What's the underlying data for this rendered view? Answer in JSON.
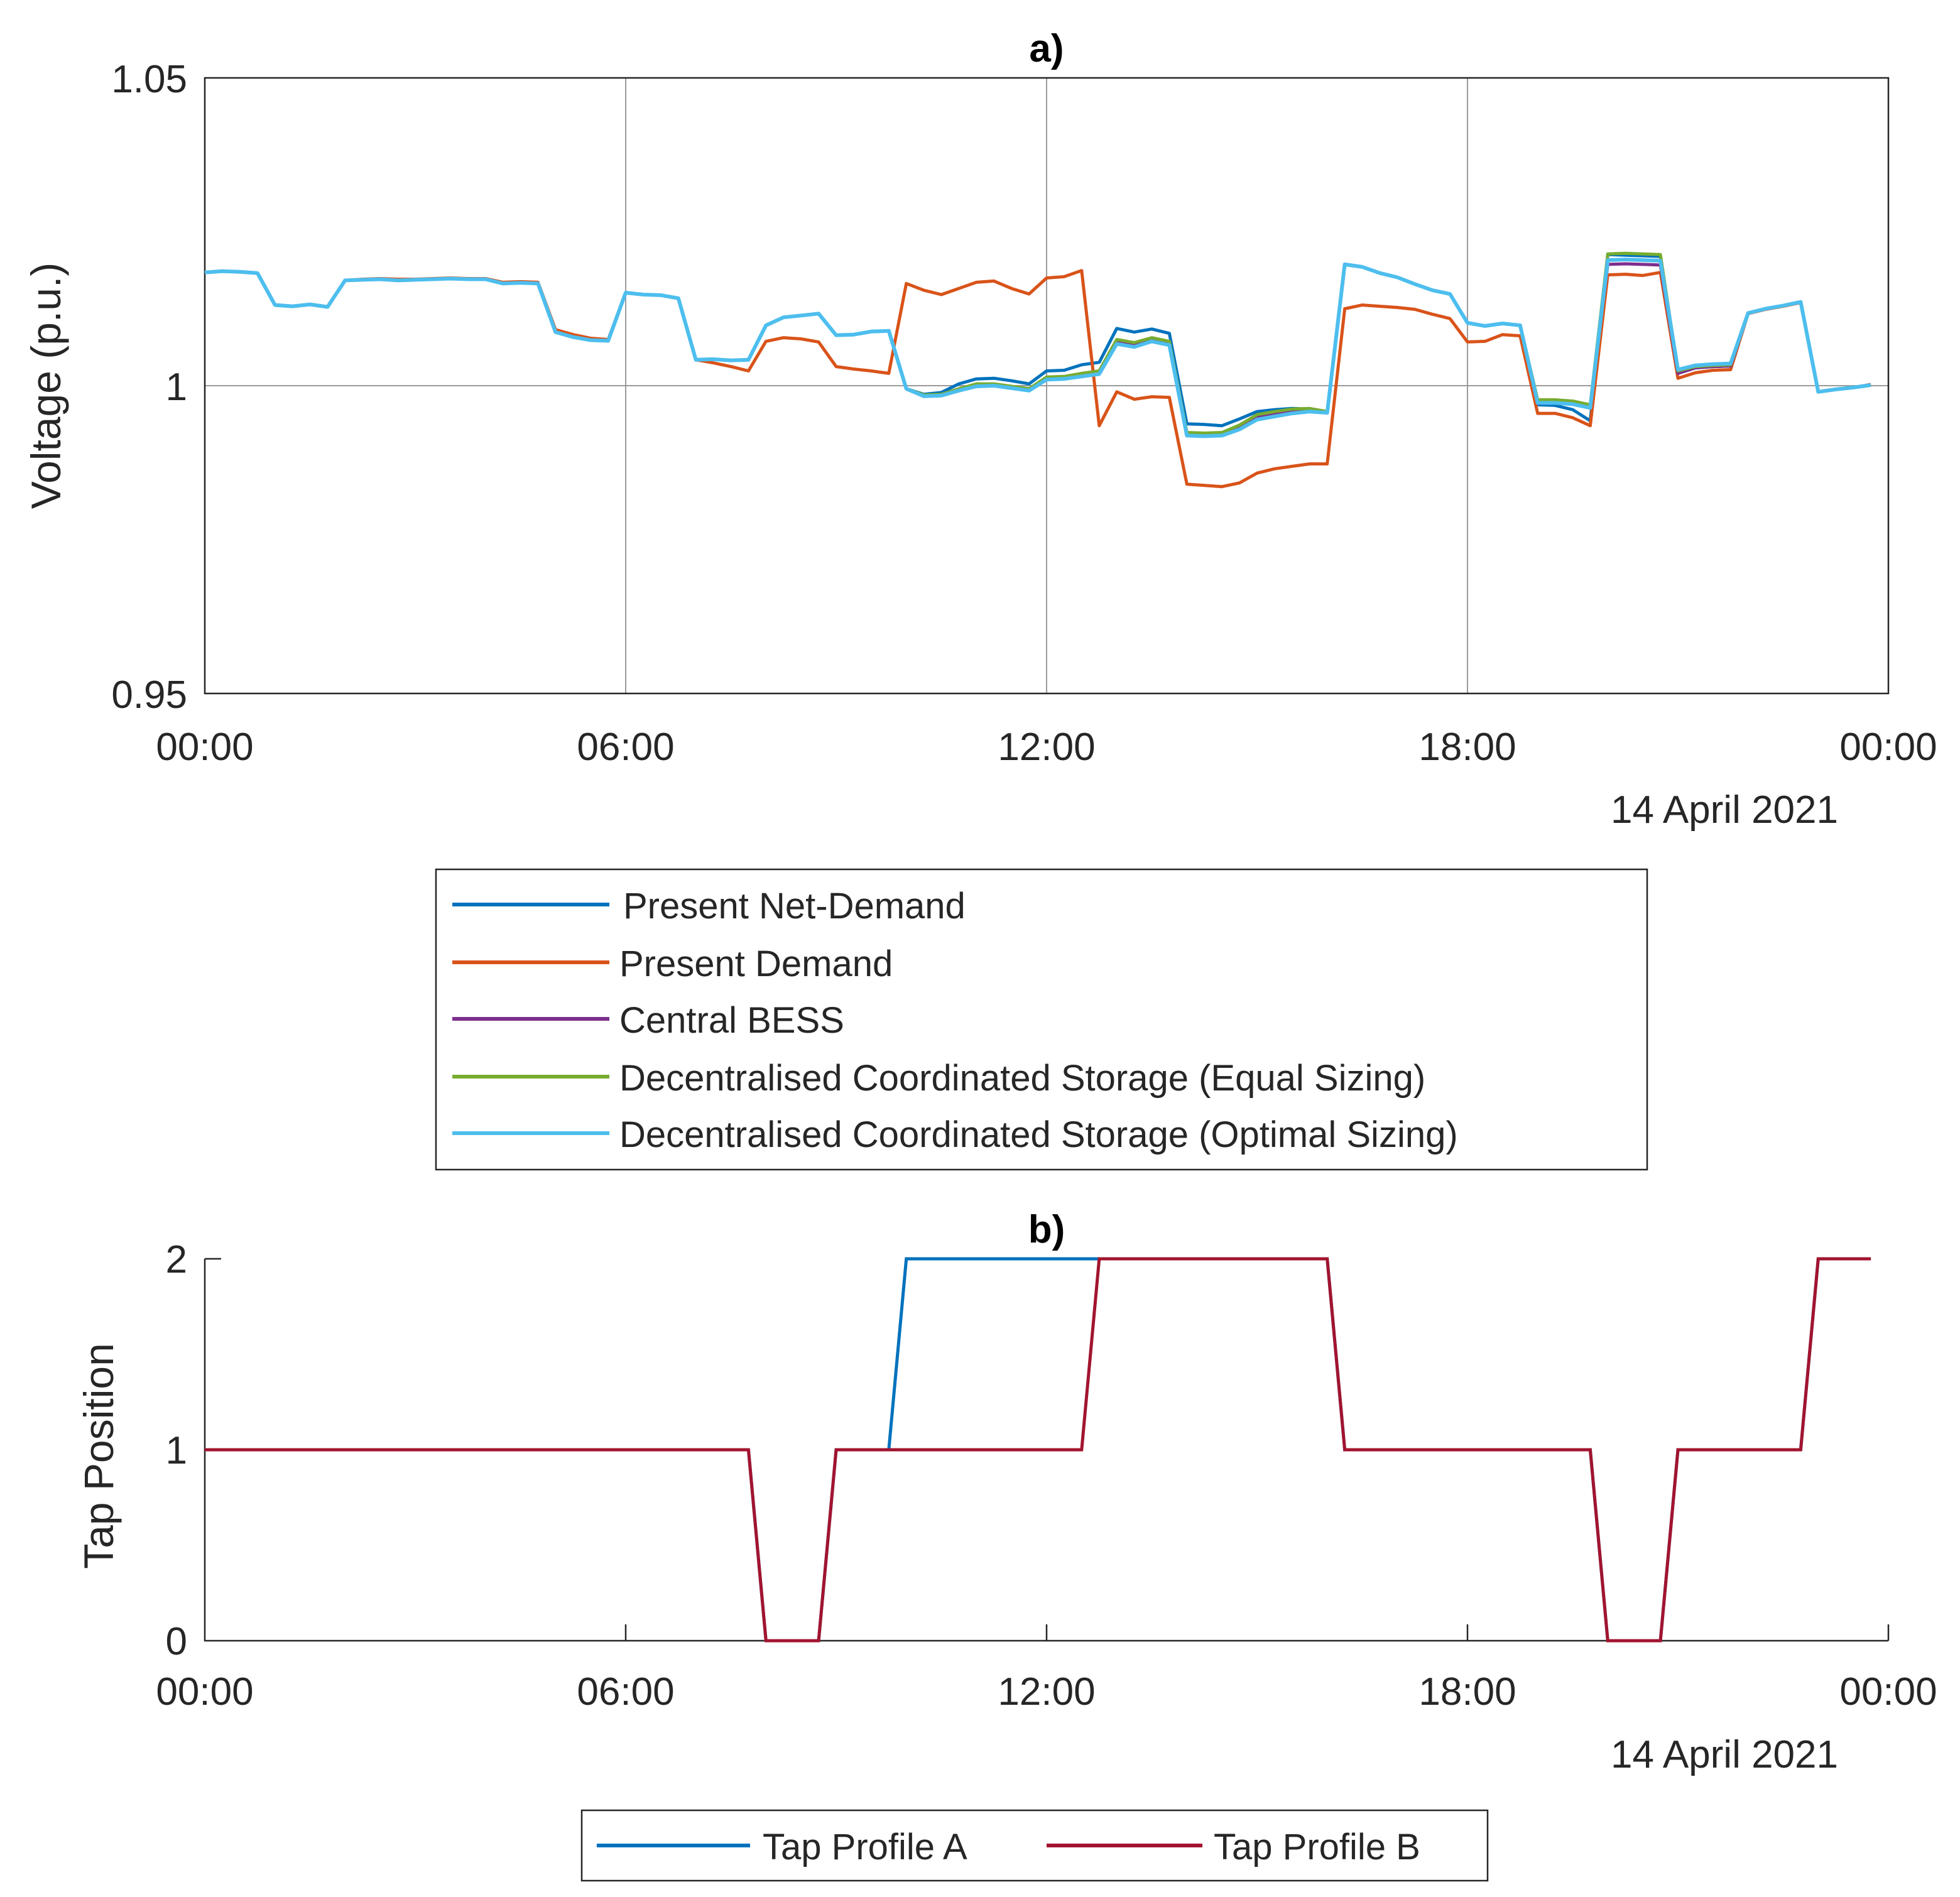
{
  "chart_data": [
    {
      "type": "line",
      "title": "a)",
      "xlabel": "",
      "ylabel": "Voltage (p.u.)",
      "date_label": "14 April 2021",
      "xlim": [
        0,
        24
      ],
      "ylim": [
        0.95,
        1.05
      ],
      "x_ticks": [
        0,
        6,
        12,
        18,
        24
      ],
      "x_tick_labels": [
        "00:00",
        "06:00",
        "12:00",
        "18:00",
        "00:00"
      ],
      "y_ticks": [
        0.95,
        1,
        1.05
      ],
      "y_tick_labels": [
        "0.95",
        "1",
        "1.05"
      ],
      "grid": true,
      "legend_position": "below",
      "x": [
        0,
        0.25,
        0.5,
        0.75,
        1,
        1.25,
        1.5,
        1.75,
        2,
        2.25,
        2.5,
        2.75,
        3,
        3.25,
        3.5,
        3.75,
        4,
        4.25,
        4.5,
        4.75,
        5,
        5.25,
        5.5,
        5.75,
        6,
        6.25,
        6.5,
        6.75,
        7,
        7.25,
        7.5,
        7.75,
        8,
        8.25,
        8.5,
        8.75,
        9,
        9.25,
        9.5,
        9.75,
        10,
        10.25,
        10.5,
        10.75,
        11,
        11.25,
        11.5,
        11.75,
        12,
        12.25,
        12.5,
        12.75,
        13,
        13.25,
        13.5,
        13.75,
        14,
        14.25,
        14.5,
        14.75,
        15,
        15.25,
        15.5,
        15.75,
        16,
        16.25,
        16.5,
        16.75,
        17,
        17.25,
        17.5,
        17.75,
        18,
        18.25,
        18.5,
        18.75,
        19,
        19.25,
        19.5,
        19.75,
        20,
        20.25,
        20.5,
        20.75,
        21,
        21.25,
        21.5,
        21.75,
        22,
        22.25,
        22.5,
        22.75,
        23,
        23.25,
        23.5,
        23.75
      ],
      "series": [
        {
          "name": "Present Net-Demand",
          "color": "#0072BD",
          "values": [
            1.0184,
            1.0186,
            1.0185,
            1.0183,
            1.0131,
            1.0129,
            1.0132,
            1.0128,
            1.0171,
            1.0172,
            1.0173,
            1.0171,
            1.0172,
            1.0173,
            1.0174,
            1.0173,
            1.0173,
            1.0166,
            1.0167,
            1.0166,
            1.0087,
            1.0079,
            1.0074,
            1.0073,
            1.0151,
            1.0148,
            1.0147,
            1.0142,
            1.0042,
            1.0043,
            1.0041,
            1.0042,
            1.0098,
            1.0111,
            1.0114,
            1.0117,
            1.0082,
            1.0083,
            1.0088,
            1.0089,
            0.9995,
            0.9986,
            0.9989,
            1.0003,
            1.0011,
            1.0012,
            1.0008,
            1.0003,
            1.0024,
            1.0025,
            1.0034,
            1.0038,
            1.0093,
            1.0087,
            1.0092,
            1.0085,
            0.9938,
            0.9937,
            0.9935,
            0.9946,
            0.9958,
            0.9961,
            0.9963,
            0.9962,
            0.9957,
            1.0197,
            1.0193,
            1.0183,
            1.0176,
            1.0165,
            1.0155,
            1.0149,
            1.0102,
            1.0097,
            1.0101,
            1.0098,
            0.9969,
            0.9968,
            0.9961,
            0.9943,
            1.0213,
            1.0212,
            1.0211,
            1.021,
            1.002,
            1.0029,
            1.0031,
            1.0032,
            1.0118,
            1.0125,
            1.013,
            1.0136,
            0.999,
            0.9994,
            0.9997,
            1.0001
          ]
        },
        {
          "name": "Present Demand",
          "color": "#D95319",
          "values": [
            1.0184,
            1.0186,
            1.0185,
            1.0183,
            1.0131,
            1.0129,
            1.0132,
            1.0128,
            1.0171,
            1.0173,
            1.0174,
            1.0173,
            1.0173,
            1.0174,
            1.0175,
            1.0174,
            1.0174,
            1.0168,
            1.0169,
            1.0168,
            1.0091,
            1.0083,
            1.0077,
            1.0075,
            1.0151,
            1.0148,
            1.0147,
            1.0142,
            1.0042,
            1.0037,
            1.0031,
            1.0024,
            1.0072,
            1.0078,
            1.0076,
            1.0071,
            1.0031,
            1.0027,
            1.0024,
            1.002,
            1.0166,
            1.0155,
            1.0148,
            1.0158,
            1.0168,
            1.017,
            1.0158,
            1.0149,
            1.0175,
            1.0177,
            1.0187,
            0.9935,
            0.999,
            0.9978,
            0.9982,
            0.9981,
            0.984,
            0.9838,
            0.9836,
            0.9842,
            0.9858,
            0.9865,
            0.9869,
            0.9873,
            0.9873,
            1.0125,
            1.0131,
            1.0129,
            1.0127,
            1.0124,
            1.0116,
            1.0109,
            1.0071,
            1.0072,
            1.0083,
            1.0081,
            0.9955,
            0.9955,
            0.9948,
            0.9935,
            1.018,
            1.0181,
            1.0179,
            1.0184,
            1.0012,
            1.0021,
            1.0025,
            1.0026,
            1.0117,
            1.0124,
            1.0129,
            1.0135,
            0.999,
            0.9994,
            0.9997,
            1.0002
          ]
        },
        {
          "name": "Central BESS",
          "color": "#7E2F8E",
          "values": [
            1.0184,
            1.0186,
            1.0185,
            1.0183,
            1.0131,
            1.0129,
            1.0132,
            1.0128,
            1.0171,
            1.0172,
            1.0173,
            1.0171,
            1.0172,
            1.0173,
            1.0174,
            1.0173,
            1.0173,
            1.0166,
            1.0167,
            1.0166,
            1.0087,
            1.0079,
            1.0074,
            1.0073,
            1.0151,
            1.0148,
            1.0147,
            1.0142,
            1.0042,
            1.0043,
            1.0041,
            1.0042,
            1.0098,
            1.0111,
            1.0114,
            1.0117,
            1.0082,
            1.0083,
            1.0088,
            1.0089,
            0.9995,
            0.9984,
            0.9985,
            0.9993,
            1.0001,
            1.0002,
            0.9998,
            0.9994,
            1.0013,
            1.0014,
            1.0019,
            1.0023,
            1.0071,
            1.0066,
            1.0075,
            1.0069,
            0.992,
            0.9919,
            0.992,
            0.9931,
            0.9948,
            0.9953,
            0.9958,
            0.996,
            0.9957,
            1.0197,
            1.0193,
            1.0183,
            1.0176,
            1.0165,
            1.0155,
            1.0149,
            1.0102,
            1.0097,
            1.0101,
            1.0098,
            0.9975,
            0.9975,
            0.9973,
            0.9967,
            1.0197,
            1.0198,
            1.0197,
            1.0196,
            1.002,
            1.0029,
            1.0031,
            1.0032,
            1.0118,
            1.0125,
            1.013,
            1.0136,
            0.999,
            0.9994,
            0.9997,
            1.0001
          ]
        },
        {
          "name": "Decentralised Coordinated Storage (Equal Sizing)",
          "color": "#77AC30",
          "values": [
            1.0184,
            1.0186,
            1.0185,
            1.0183,
            1.0131,
            1.0129,
            1.0132,
            1.0128,
            1.0171,
            1.0172,
            1.0173,
            1.0171,
            1.0172,
            1.0173,
            1.0174,
            1.0173,
            1.0173,
            1.0166,
            1.0167,
            1.0166,
            1.0087,
            1.0079,
            1.0074,
            1.0073,
            1.0151,
            1.0148,
            1.0147,
            1.0142,
            1.0042,
            1.0043,
            1.0041,
            1.0042,
            1.0098,
            1.0111,
            1.0114,
            1.0117,
            1.0082,
            1.0083,
            1.0088,
            1.0089,
            0.9995,
            0.9985,
            0.9986,
            0.9995,
            1.0003,
            1.0003,
            0.9999,
            0.9995,
            1.0014,
            1.0015,
            1.002,
            1.0024,
            1.0075,
            1.007,
            1.0078,
            1.0072,
            0.9924,
            0.9923,
            0.9924,
            0.9936,
            0.9953,
            0.9958,
            0.9962,
            0.9963,
            0.9958,
            1.0197,
            1.0193,
            1.0183,
            1.0176,
            1.0165,
            1.0155,
            1.0149,
            1.0102,
            1.0097,
            1.0101,
            1.0098,
            0.9977,
            0.9977,
            0.9975,
            0.9969,
            1.0214,
            1.0215,
            1.0214,
            1.0213,
            1.0024,
            1.0031,
            1.0033,
            1.0034,
            1.0118,
            1.0125,
            1.013,
            1.0136,
            0.999,
            0.9994,
            0.9997,
            1.0001
          ]
        },
        {
          "name": "Decentralised Coordinated Storage (Optimal Sizing)",
          "color": "#4DBEEE",
          "values": [
            1.0184,
            1.0186,
            1.0185,
            1.0183,
            1.0131,
            1.0129,
            1.0132,
            1.0128,
            1.0171,
            1.0172,
            1.0173,
            1.0171,
            1.0172,
            1.0173,
            1.0174,
            1.0173,
            1.0173,
            1.0166,
            1.0167,
            1.0166,
            1.0087,
            1.0079,
            1.0074,
            1.0073,
            1.0151,
            1.0148,
            1.0147,
            1.0142,
            1.0042,
            1.0043,
            1.0041,
            1.0042,
            1.0098,
            1.0111,
            1.0114,
            1.0117,
            1.0082,
            1.0083,
            1.0088,
            1.0089,
            0.9995,
            0.9983,
            0.9984,
            0.9992,
            0.9999,
            1.0,
            0.9996,
            0.9992,
            1.001,
            1.0011,
            1.0015,
            1.0019,
            1.0068,
            1.0063,
            1.0072,
            1.0066,
            0.9919,
            0.9918,
            0.9919,
            0.9929,
            0.9945,
            0.995,
            0.9955,
            0.9958,
            0.9956,
            1.0197,
            1.0193,
            1.0183,
            1.0176,
            1.0165,
            1.0155,
            1.0149,
            1.0102,
            1.0097,
            1.0101,
            1.0098,
            0.9972,
            0.9972,
            0.997,
            0.9964,
            1.0204,
            1.0205,
            1.0204,
            1.0203,
            1.0026,
            1.0033,
            1.0035,
            1.0036,
            1.0118,
            1.0125,
            1.013,
            1.0136,
            0.999,
            0.9994,
            0.9997,
            1.0001
          ]
        }
      ]
    },
    {
      "type": "line",
      "title": "b)",
      "xlabel": "",
      "ylabel": "Tap Position",
      "date_label": "14 April 2021",
      "xlim": [
        0,
        24
      ],
      "ylim": [
        0,
        2
      ],
      "x_ticks": [
        0,
        6,
        12,
        18,
        24
      ],
      "x_tick_labels": [
        "00:00",
        "06:00",
        "12:00",
        "18:00",
        "00:00"
      ],
      "y_ticks": [
        0,
        1,
        2
      ],
      "y_tick_labels": [
        "0",
        "1",
        "2"
      ],
      "grid": false,
      "legend_position": "below",
      "series": [
        {
          "name": "Tap Profile A",
          "color": "#0072BD",
          "x": [
            0,
            7.75,
            8,
            8.75,
            9,
            9.75,
            10,
            12.75,
            13,
            16,
            16.25,
            19.75,
            20,
            20.75,
            21,
            22.75,
            23,
            23.75
          ],
          "values": [
            1,
            1,
            0,
            0,
            1,
            1,
            2,
            2,
            2,
            2,
            1,
            1,
            0,
            0,
            1,
            1,
            2,
            2
          ]
        },
        {
          "name": "Tap Profile B",
          "color": "#A2142F",
          "x": [
            0,
            7.75,
            8,
            8.75,
            9,
            12.5,
            12.75,
            16,
            16.25,
            19.75,
            20,
            20.75,
            21,
            22.75,
            23,
            23.75
          ],
          "values": [
            1,
            1,
            0,
            0,
            1,
            1,
            2,
            2,
            1,
            1,
            0,
            0,
            1,
            1,
            2,
            2
          ]
        }
      ]
    }
  ]
}
